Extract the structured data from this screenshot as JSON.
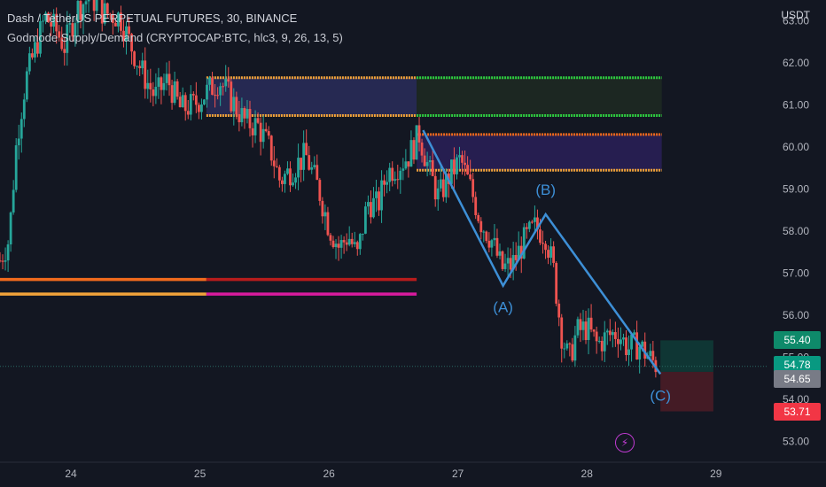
{
  "header": {
    "symbol_line": "Dash / TetherUS PERPETUAL FUTURES, 30, BINANCE",
    "indicator_line": "Godmode Supply/Demand (CRYPTOCAP:BTC, hlc3, 9, 26, 13, 5)",
    "currency": "USDT"
  },
  "colors": {
    "background": "#131722",
    "up": "#26a69a",
    "down": "#ef5350",
    "wave": "#3d8fd6",
    "zone_fill": "#2a2d5a",
    "zone_green_fill": "#1e2a22",
    "orange": "#f2a33a",
    "dark_orange": "#f06a1d",
    "green": "#2ecc40",
    "red_line": "#b71c1c",
    "magenta": "#d81b9e"
  },
  "badges": [
    {
      "name": "take-profit-badge",
      "label": "55.40",
      "color": "#0e8a6a",
      "value": 55.4
    },
    {
      "name": "last-price-badge",
      "label": "54.78",
      "color": "#089981",
      "value": 54.78
    },
    {
      "name": "entry-price-badge",
      "label": "54.65",
      "color": "#787b86",
      "value": 54.65
    },
    {
      "name": "stop-loss-badge",
      "label": "53.71",
      "color": "#f23645",
      "value": 53.71
    }
  ],
  "chart_data": {
    "type": "candlestick",
    "y_axis": {
      "min": 52.5,
      "max": 63.5,
      "ticks": [
        "53.00",
        "54.00",
        "55.00",
        "56.00",
        "57.00",
        "58.00",
        "59.00",
        "60.00",
        "61.00",
        "62.00",
        "63.00"
      ]
    },
    "x_axis": {
      "min": 23.45,
      "max": 29.4,
      "ticks": [
        {
          "value": 24,
          "label": "24"
        },
        {
          "value": 25,
          "label": "25"
        },
        {
          "value": 26,
          "label": "26"
        },
        {
          "value": 27,
          "label": "27"
        },
        {
          "value": 28,
          "label": "28"
        },
        {
          "value": 29,
          "label": "29"
        }
      ]
    },
    "price_path": [
      [
        23.45,
        57.3
      ],
      [
        23.52,
        57.8
      ],
      [
        23.58,
        60.2
      ],
      [
        23.65,
        61.6
      ],
      [
        23.72,
        62.3
      ],
      [
        23.8,
        63.1
      ],
      [
        23.88,
        62.8
      ],
      [
        23.95,
        62.4
      ],
      [
        24.05,
        63.3
      ],
      [
        24.15,
        63.6
      ],
      [
        24.25,
        63.2
      ],
      [
        24.38,
        63.1
      ],
      [
        24.48,
        62.3
      ],
      [
        24.55,
        61.8
      ],
      [
        24.65,
        61.2
      ],
      [
        24.75,
        61.6
      ],
      [
        24.85,
        60.9
      ],
      [
        24.95,
        61.0
      ],
      [
        25.05,
        61.3
      ],
      [
        25.15,
        61.6
      ],
      [
        25.25,
        61.1
      ],
      [
        25.35,
        60.6
      ],
      [
        25.45,
        60.5
      ],
      [
        25.55,
        59.9
      ],
      [
        25.62,
        59.2
      ],
      [
        25.72,
        59.5
      ],
      [
        25.82,
        59.8
      ],
      [
        25.92,
        59.0
      ],
      [
        26.0,
        58.1
      ],
      [
        26.08,
        57.6
      ],
      [
        26.15,
        57.9
      ],
      [
        26.22,
        57.4
      ],
      [
        26.3,
        58.7
      ],
      [
        26.38,
        58.6
      ],
      [
        26.45,
        59.4
      ],
      [
        26.55,
        59.6
      ],
      [
        26.62,
        59.8
      ],
      [
        26.7,
        60.3
      ],
      [
        26.78,
        59.4
      ],
      [
        26.85,
        58.8
      ],
      [
        26.93,
        59.3
      ],
      [
        27.02,
        59.7
      ],
      [
        27.1,
        59.0
      ],
      [
        27.18,
        58.2
      ],
      [
        27.26,
        57.8
      ],
      [
        27.34,
        57.1
      ],
      [
        27.42,
        57.2
      ],
      [
        27.52,
        57.8
      ],
      [
        27.6,
        58.1
      ],
      [
        27.68,
        57.9
      ],
      [
        27.74,
        57.1
      ],
      [
        27.8,
        55.6
      ],
      [
        27.86,
        54.9
      ],
      [
        27.92,
        55.6
      ],
      [
        28.0,
        55.7
      ],
      [
        28.08,
        55.3
      ],
      [
        28.16,
        55.5
      ],
      [
        28.24,
        55.6
      ],
      [
        28.32,
        55.2
      ],
      [
        28.4,
        55.3
      ],
      [
        28.48,
        55.0
      ],
      [
        28.55,
        54.78
      ]
    ],
    "wave": {
      "points": [
        {
          "label": "",
          "x": 26.73,
          "y": 60.4
        },
        {
          "label": "(A)",
          "x": 27.35,
          "y": 56.7
        },
        {
          "label": "(B)",
          "x": 27.68,
          "y": 58.4
        },
        {
          "label": "(C)",
          "x": 28.57,
          "y": 54.6
        }
      ]
    },
    "zones": [
      {
        "name": "supply-zone-upper",
        "x1": 25.05,
        "x2": 26.68,
        "y1": 60.75,
        "y2": 61.65,
        "fill": "#2a2d5a",
        "top_color": "#f2a33a",
        "bottom_color": "#f2a33a"
      },
      {
        "name": "supply-zone-upper-projection",
        "x1": 26.68,
        "x2": 28.58,
        "y1": 60.75,
        "y2": 61.65,
        "fill": "#1e2a22",
        "top_color": "#2ecc40",
        "bottom_color": "#2ecc40"
      },
      {
        "name": "supply-zone-mid",
        "x1": 26.68,
        "x2": 28.58,
        "y1": 59.45,
        "y2": 60.3,
        "fill": "#2a2058",
        "top_color": "#f06a1d",
        "bottom_color": "#f2a33a"
      }
    ],
    "levels": [
      {
        "name": "demand-line-1-left",
        "x1": 23.45,
        "x2": 25.05,
        "y": 56.85,
        "color": "#f06a1d"
      },
      {
        "name": "demand-line-1-right",
        "x1": 25.05,
        "x2": 26.68,
        "y": 56.85,
        "color": "#b71c1c"
      },
      {
        "name": "demand-line-2-left",
        "x1": 23.45,
        "x2": 25.05,
        "y": 56.5,
        "color": "#f2a33a"
      },
      {
        "name": "demand-line-2-right",
        "x1": 25.05,
        "x2": 26.68,
        "y": 56.5,
        "color": "#d81b9e"
      }
    ],
    "position": {
      "x1": 28.57,
      "x2": 28.98,
      "entry": 54.65,
      "take_profit": 55.4,
      "stop_loss": 53.71,
      "profit_fill": "#0f3a36",
      "loss_fill": "#4a1c26"
    },
    "last_price": 54.78
  },
  "misc": {
    "bolt_icon": "lightning-bolt-icon"
  }
}
